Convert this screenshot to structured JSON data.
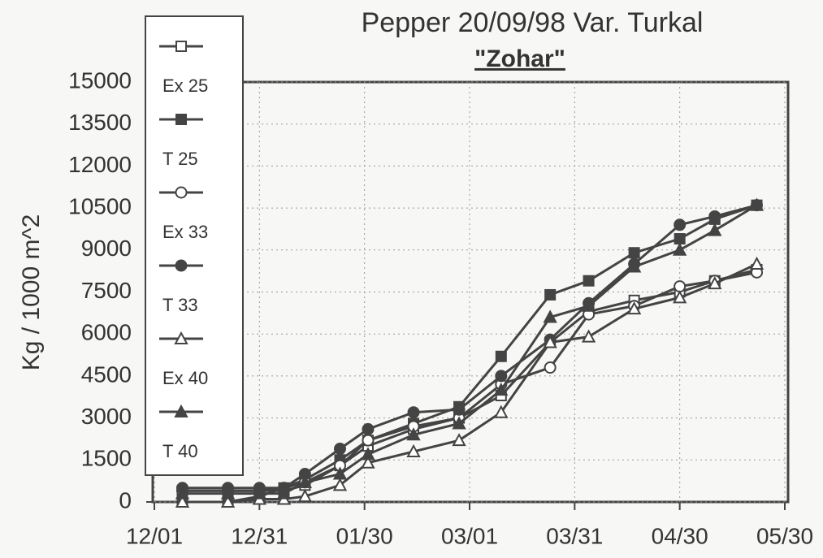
{
  "chart_data": {
    "type": "line",
    "title": "Pepper 20/09/98 Var. Turkal",
    "subtitle": "\"Zohar\"",
    "y_label": "Kg / 1000 m^2",
    "x": [
      "12/09",
      "12/22",
      "12/31",
      "01/07",
      "01/13",
      "01/23",
      "01/31",
      "02/13",
      "02/26",
      "03/10",
      "03/24",
      "04/04",
      "04/17",
      "04/30",
      "05/10",
      "05/22"
    ],
    "xlim": [
      "12/01",
      "05/30"
    ],
    "xticks": [
      "12/01",
      "12/31",
      "01/30",
      "03/01",
      "03/31",
      "04/30",
      "05/30"
    ],
    "ylim": [
      0,
      15000
    ],
    "yticks": [
      0,
      1500,
      3000,
      4500,
      6000,
      7500,
      9000,
      10500,
      12000,
      13500,
      15000
    ],
    "grid": true,
    "series": [
      {
        "name": "Ex 25",
        "color": "#444444",
        "marker": "square",
        "filled": false,
        "values": [
          400,
          400,
          400,
          400,
          600,
          1300,
          2000,
          2600,
          3000,
          3800,
          5700,
          6800,
          7200,
          7500,
          7900,
          8300
        ]
      },
      {
        "name": "T 25",
        "color": "#444444",
        "marker": "square",
        "filled": true,
        "values": [
          0,
          0,
          200,
          500,
          800,
          1500,
          2200,
          2800,
          3400,
          5200,
          7400,
          7900,
          8900,
          9400,
          10100,
          10600
        ]
      },
      {
        "name": "Ex 33",
        "color": "#444444",
        "marker": "circle",
        "filled": false,
        "values": [
          400,
          400,
          400,
          500,
          700,
          1300,
          2200,
          2700,
          3000,
          4200,
          4800,
          6700,
          7000,
          7700,
          7900,
          8200
        ]
      },
      {
        "name": "T 33",
        "color": "#444444",
        "marker": "circle",
        "filled": true,
        "values": [
          500,
          500,
          500,
          500,
          1000,
          1900,
          2600,
          3200,
          3300,
          4500,
          5800,
          7100,
          8500,
          9900,
          10200,
          10600
        ]
      },
      {
        "name": "Ex 40",
        "color": "#444444",
        "marker": "triangle",
        "filled": false,
        "values": [
          0,
          0,
          100,
          100,
          200,
          600,
          1400,
          1800,
          2200,
          3200,
          5700,
          5900,
          6900,
          7300,
          7800,
          8500
        ]
      },
      {
        "name": "T 40",
        "color": "#444444",
        "marker": "triangle",
        "filled": true,
        "values": [
          300,
          300,
          300,
          300,
          700,
          1000,
          1700,
          2400,
          2800,
          4000,
          6600,
          7000,
          8400,
          9000,
          9700,
          10600
        ]
      }
    ]
  }
}
